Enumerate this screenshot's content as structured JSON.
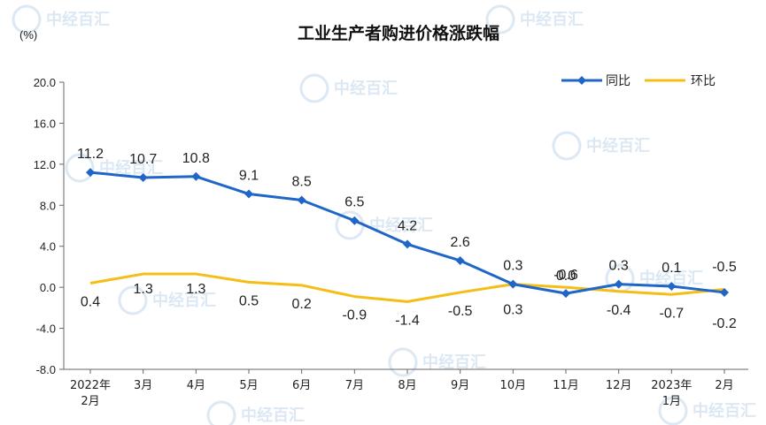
{
  "watermark_text": "中经百汇",
  "chart_data": {
    "type": "line",
    "title": "工业生产者购进价格涨跌幅",
    "unit": "(%)",
    "ylim": [
      -8.0,
      20.0
    ],
    "yticks": [
      "20.0",
      "16.0",
      "12.0",
      "8.0",
      "4.0",
      "0.0",
      "-4.0",
      "-8.0"
    ],
    "ytick_values": [
      20,
      16,
      12,
      8,
      4,
      0,
      -4,
      -8
    ],
    "categories": [
      [
        "2022年",
        "2月"
      ],
      [
        "3月"
      ],
      [
        "4月"
      ],
      [
        "5月"
      ],
      [
        "6月"
      ],
      [
        "7月"
      ],
      [
        "8月"
      ],
      [
        "9月"
      ],
      [
        "10月"
      ],
      [
        "11月"
      ],
      [
        "12月"
      ],
      [
        "2023年",
        "1月"
      ],
      [
        "2月"
      ]
    ],
    "legend_position": "top-right",
    "grid": false,
    "series": [
      {
        "name": "同比",
        "color": "#1f66c8",
        "marker": "diamond",
        "values": [
          11.2,
          10.7,
          10.8,
          9.1,
          8.5,
          6.5,
          4.2,
          2.6,
          0.3,
          -0.6,
          0.3,
          0.1,
          -0.5
        ],
        "labels": [
          "11.2",
          "10.7",
          "10.8",
          "9.1",
          "8.5",
          "6.5",
          "4.2",
          "2.6",
          "0.3",
          "-0.6",
          "0.3",
          "0.1",
          "-0.5"
        ]
      },
      {
        "name": "环比",
        "color": "#f5be16",
        "marker": "none",
        "values": [
          0.4,
          1.3,
          1.3,
          0.5,
          0.2,
          -0.9,
          -1.4,
          -0.5,
          0.3,
          0.0,
          -0.4,
          -0.7,
          -0.2
        ],
        "labels": [
          "0.4",
          "1.3",
          "1.3",
          "0.5",
          "0.2",
          "-0.9",
          "-1.4",
          "-0.5",
          "0.3",
          "0.0",
          "-0.4",
          "-0.7",
          "-0.2"
        ]
      }
    ]
  }
}
